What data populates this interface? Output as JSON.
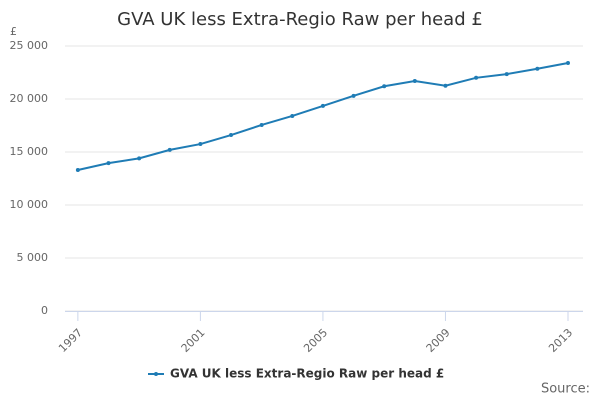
{
  "chart_data": {
    "type": "line",
    "title": "GVA UK less Extra-Regio Raw per head £",
    "y_axis_label": "£",
    "source": "Source:",
    "x": [
      1997,
      1998,
      1999,
      2000,
      2001,
      2002,
      2003,
      2004,
      2005,
      2006,
      2007,
      2008,
      2009,
      2010,
      2011,
      2012,
      2013
    ],
    "series": [
      {
        "name": "GVA UK less Extra-Regio Raw per head £",
        "color": "#1f7cb5",
        "values": [
          13300,
          13950,
          14400,
          15200,
          15750,
          16600,
          17550,
          18400,
          19350,
          20300,
          21200,
          21700,
          21250,
          22000,
          22350,
          22850,
          23400
        ]
      }
    ],
    "xlim": [
      1996.58,
      2013.49
    ],
    "xticks": [
      1997,
      2001,
      2005,
      2009,
      2013
    ],
    "ylim": [
      0,
      25000
    ],
    "yticks": [
      0,
      {
        "value": 5000,
        "label": "5 000"
      },
      {
        "value": 10000,
        "label": "10 000"
      },
      {
        "value": 15000,
        "label": "15 000"
      },
      {
        "value": 20000,
        "label": "20 000"
      },
      {
        "value": 25000,
        "label": "25 000"
      }
    ],
    "grid": true,
    "legend": "bottom"
  }
}
